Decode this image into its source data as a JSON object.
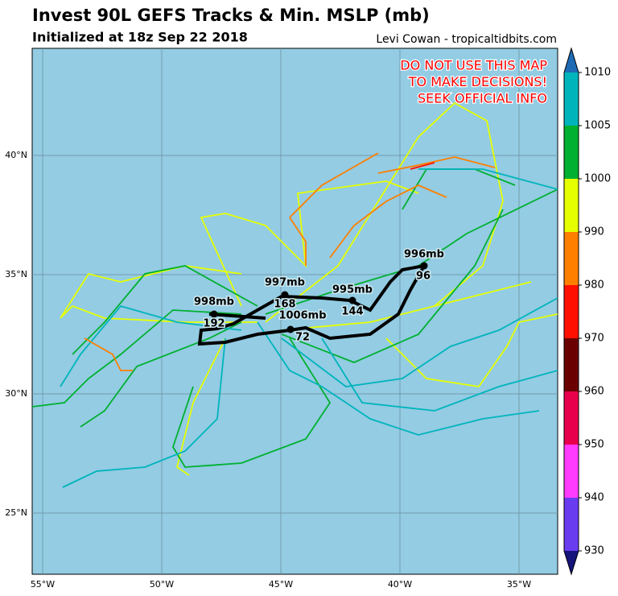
{
  "header": {
    "title": "Invest 90L GEFS Tracks & Min. MSLP (mb)",
    "subtitle": "Initialized at 18z Sep 22 2018",
    "credit": "Levi Cowan - tropicaltidbits.com"
  },
  "warning": [
    "DO NOT USE THIS MAP",
    "TO MAKE DECISIONS!",
    "SEEK OFFICIAL INFO"
  ],
  "lon_labels": [
    "55°W",
    "50°W",
    "45°W",
    "40°W",
    "35°W"
  ],
  "lat_labels": [
    "40°N",
    "35°N",
    "30°N",
    "25°N"
  ],
  "track_labels": [
    {
      "pressure": "996mb",
      "hour": "96"
    },
    {
      "pressure": "997mb",
      "hour": "168"
    },
    {
      "pressure": "995mb",
      "hour": "144"
    },
    {
      "pressure": "998mb",
      "hour": "192"
    },
    {
      "pressure": "1006mb",
      "hour": "72"
    }
  ],
  "colorbar": {
    "labels": [
      "1010",
      "1005",
      "1000",
      "990",
      "980",
      "970",
      "960",
      "950",
      "940",
      "930"
    ],
    "colors": [
      "#00b4bc",
      "#00b030",
      "#e6ff00",
      "#ff7f00",
      "#ff1000",
      "#6b0000",
      "#e8004c",
      "#ff3cff",
      "#6a3cf0"
    ],
    "over_color": "#1e6ab4",
    "under_color": "#14147a"
  }
}
